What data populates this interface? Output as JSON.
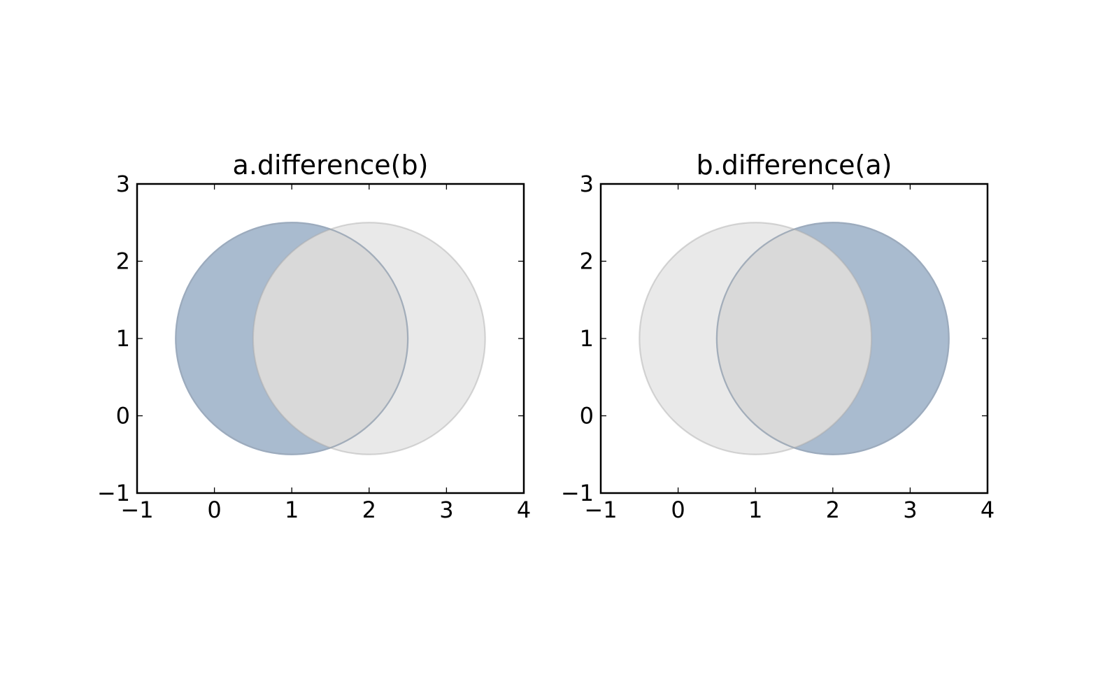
{
  "chart_data": [
    {
      "type": "venn",
      "title": "a.difference(b)",
      "xlim": [
        -1,
        4
      ],
      "ylim": [
        -1,
        3
      ],
      "x_ticks": [
        -1,
        0,
        1,
        2,
        3,
        4
      ],
      "y_ticks": [
        -1,
        0,
        1,
        2,
        3
      ],
      "x_tick_labels": [
        "−1",
        "0",
        "1",
        "2",
        "3",
        "4"
      ],
      "y_tick_labels": [
        "−1",
        "0",
        "1",
        "2",
        "3"
      ],
      "shapes": [
        {
          "name": "a",
          "center": [
            1,
            1
          ],
          "radius": 1.5,
          "role": "difference-result"
        },
        {
          "name": "b",
          "center": [
            2,
            1
          ],
          "radius": 1.5,
          "role": "subtracted"
        }
      ],
      "grid": false
    },
    {
      "type": "venn",
      "title": "b.difference(a)",
      "xlim": [
        -1,
        4
      ],
      "ylim": [
        -1,
        3
      ],
      "x_ticks": [
        -1,
        0,
        1,
        2,
        3,
        4
      ],
      "y_ticks": [
        -1,
        0,
        1,
        2,
        3
      ],
      "x_tick_labels": [
        "−1",
        "0",
        "1",
        "2",
        "3",
        "4"
      ],
      "y_tick_labels": [
        "−1",
        "0",
        "1",
        "2",
        "3"
      ],
      "shapes": [
        {
          "name": "b",
          "center": [
            2,
            1
          ],
          "radius": 1.5,
          "role": "difference-result"
        },
        {
          "name": "a",
          "center": [
            1,
            1
          ],
          "radius": 1.5,
          "role": "subtracted"
        }
      ],
      "grid": false
    }
  ],
  "colors": {
    "result_fill": "#a7bfdb",
    "result_stroke": "#86a7cf",
    "gray_fill": "#b0b0b0",
    "gray_stroke": "#a8a8a8",
    "axes": "#000000",
    "background": "#ffffff"
  }
}
